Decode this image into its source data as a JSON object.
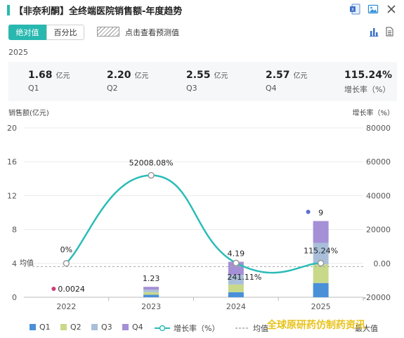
{
  "header": {
    "title": "【非奈利酮】全终端医院销售额-年度趋势"
  },
  "controls": {
    "absolute_label": "绝对值",
    "percent_label": "百分比",
    "forecast_label": "点击查看预测值"
  },
  "year_label": "2025",
  "stats": [
    {
      "value": "1.68",
      "unit": "亿元",
      "label": "Q1"
    },
    {
      "value": "2.20",
      "unit": "亿元",
      "label": "Q2"
    },
    {
      "value": "2.55",
      "unit": "亿元",
      "label": "Q3"
    },
    {
      "value": "2.57",
      "unit": "亿元",
      "label": "Q4"
    },
    {
      "value": "115.24%",
      "unit": "",
      "label": "增长率（%）"
    }
  ],
  "chart_data": {
    "type": "bar",
    "stacked": true,
    "categories": [
      "2022",
      "2023",
      "2024",
      "2025"
    ],
    "y_left": {
      "label": "销售额(亿元)",
      "ticks": [
        "0",
        "4",
        "8",
        "12",
        "16",
        "20"
      ],
      "range": [
        0,
        20
      ]
    },
    "y_right": {
      "label": "增长率（%）",
      "ticks": [
        "-20000",
        "0.00",
        "20000",
        "40000",
        "60000",
        "80000"
      ],
      "range": [
        -20000,
        80000
      ]
    },
    "series": [
      {
        "name": "Q1",
        "color": "#4a90d9",
        "values": [
          0.0006,
          0.3,
          0.6,
          1.68
        ]
      },
      {
        "name": "Q2",
        "color": "#c8d98a",
        "values": [
          0.0006,
          0.3,
          0.9,
          2.2
        ]
      },
      {
        "name": "Q3",
        "color": "#a9bfd9",
        "values": [
          0.0006,
          0.3,
          1.15,
          2.55
        ]
      },
      {
        "name": "Q4",
        "color": "#a58fd6",
        "values": [
          0.0006,
          0.33,
          1.54,
          2.57
        ]
      }
    ],
    "totals": [
      0.0024,
      1.23,
      4.19,
      9
    ],
    "total_labels": [
      "0.0024",
      "1.23",
      "4.19",
      "9"
    ],
    "growth": {
      "name": "增长率（%）",
      "color": "#2bbcb8",
      "values": [
        0,
        52008.08,
        241.11,
        115.24
      ],
      "labels": [
        "0%",
        "52008.08%",
        "241.11%",
        "115.24%"
      ]
    },
    "average": {
      "name": "均值",
      "label": "均值",
      "value": 3.61
    },
    "legend_extra": "最大值"
  },
  "watermark": "全球原研药仿制药资讯"
}
